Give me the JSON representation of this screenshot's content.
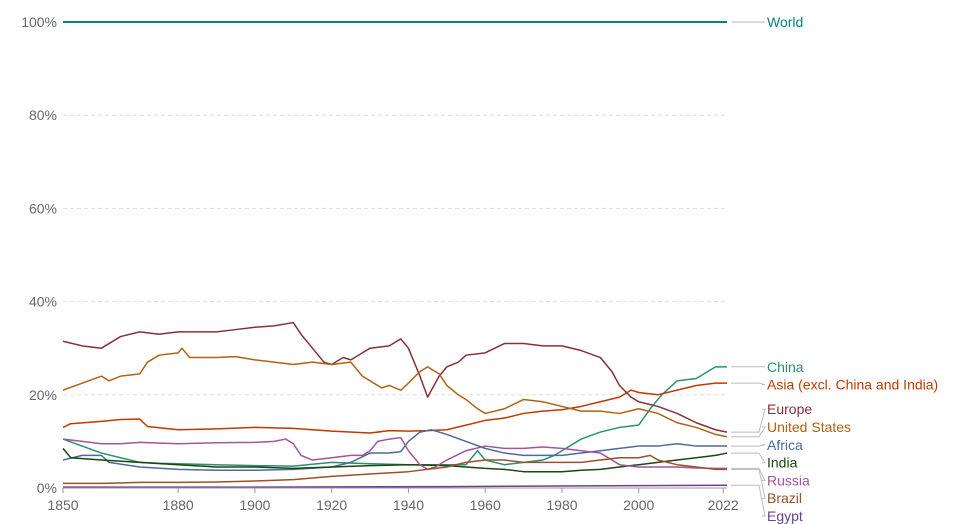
{
  "chart_data": {
    "type": "line",
    "title": "",
    "xlabel": "",
    "ylabel": "",
    "xlim": [
      1850,
      2023
    ],
    "ylim": [
      0,
      100
    ],
    "y_ticks": [
      0,
      20,
      40,
      60,
      80,
      100
    ],
    "y_tick_labels": [
      "0%",
      "20%",
      "40%",
      "60%",
      "80%",
      "100%"
    ],
    "x_ticks": [
      1850,
      1880,
      1900,
      1920,
      1940,
      1960,
      1980,
      2000,
      2022
    ],
    "x_tick_labels": [
      "1850",
      "1880",
      "1900",
      "1920",
      "1940",
      "1960",
      "1980",
      "2000",
      "2022"
    ],
    "grid": "horizontal dashed",
    "legend_position": "right, labels at line ends",
    "series": [
      {
        "name": "World",
        "color": "#00847e",
        "points": [
          [
            1850,
            100
          ],
          [
            2023,
            100
          ]
        ]
      },
      {
        "name": "China",
        "color": "#2a9170",
        "points": [
          [
            1850,
            10.5
          ],
          [
            1855,
            9
          ],
          [
            1860,
            7.5
          ],
          [
            1865,
            6.5
          ],
          [
            1870,
            5.5
          ],
          [
            1875,
            5.3
          ],
          [
            1880,
            5.2
          ],
          [
            1890,
            5
          ],
          [
            1900,
            4.8
          ],
          [
            1910,
            4.7
          ],
          [
            1920,
            5.5
          ],
          [
            1930,
            5.2
          ],
          [
            1940,
            5
          ],
          [
            1950,
            5
          ],
          [
            1955,
            5
          ],
          [
            1958,
            8
          ],
          [
            1960,
            6
          ],
          [
            1965,
            5
          ],
          [
            1970,
            5.5
          ],
          [
            1975,
            6
          ],
          [
            1978,
            7
          ],
          [
            1980,
            8
          ],
          [
            1985,
            10.5
          ],
          [
            1990,
            12
          ],
          [
            1995,
            13
          ],
          [
            2000,
            13.5
          ],
          [
            2003,
            17
          ],
          [
            2006,
            20
          ],
          [
            2010,
            23
          ],
          [
            2015,
            23.5
          ],
          [
            2018,
            25
          ],
          [
            2020,
            26
          ],
          [
            2023,
            26
          ]
        ]
      },
      {
        "name": "Asia (excl. China and India)",
        "color": "#be3b00",
        "points": [
          [
            1850,
            13
          ],
          [
            1852,
            13.8
          ],
          [
            1860,
            14.3
          ],
          [
            1865,
            14.7
          ],
          [
            1870,
            14.8
          ],
          [
            1872,
            13.2
          ],
          [
            1880,
            12.5
          ],
          [
            1890,
            12.7
          ],
          [
            1900,
            13
          ],
          [
            1910,
            12.8
          ],
          [
            1920,
            12.2
          ],
          [
            1930,
            11.8
          ],
          [
            1935,
            12.3
          ],
          [
            1940,
            12.2
          ],
          [
            1945,
            12.3
          ],
          [
            1950,
            12.5
          ],
          [
            1955,
            13.5
          ],
          [
            1960,
            14.5
          ],
          [
            1965,
            15
          ],
          [
            1970,
            16
          ],
          [
            1975,
            16.5
          ],
          [
            1980,
            16.8
          ],
          [
            1985,
            17.5
          ],
          [
            1990,
            18.5
          ],
          [
            1995,
            19.5
          ],
          [
            1998,
            21
          ],
          [
            2000,
            20.5
          ],
          [
            2005,
            20
          ],
          [
            2010,
            21
          ],
          [
            2015,
            22
          ],
          [
            2020,
            22.5
          ],
          [
            2023,
            22.5
          ]
        ]
      },
      {
        "name": "Europe",
        "color": "#883039",
        "points": [
          [
            1850,
            31.5
          ],
          [
            1855,
            30.5
          ],
          [
            1860,
            30
          ],
          [
            1865,
            32.5
          ],
          [
            1870,
            33.5
          ],
          [
            1875,
            33
          ],
          [
            1880,
            33.5
          ],
          [
            1890,
            33.5
          ],
          [
            1895,
            34
          ],
          [
            1900,
            34.5
          ],
          [
            1905,
            34.8
          ],
          [
            1910,
            35.5
          ],
          [
            1912,
            33
          ],
          [
            1915,
            30
          ],
          [
            1918,
            27
          ],
          [
            1920,
            26.5
          ],
          [
            1923,
            28
          ],
          [
            1925,
            27.5
          ],
          [
            1928,
            29
          ],
          [
            1930,
            30
          ],
          [
            1935,
            30.5
          ],
          [
            1938,
            32
          ],
          [
            1940,
            30
          ],
          [
            1943,
            24
          ],
          [
            1945,
            19.5
          ],
          [
            1948,
            24
          ],
          [
            1950,
            26
          ],
          [
            1953,
            27
          ],
          [
            1955,
            28.5
          ],
          [
            1960,
            29
          ],
          [
            1965,
            31
          ],
          [
            1970,
            31
          ],
          [
            1975,
            30.5
          ],
          [
            1980,
            30.5
          ],
          [
            1985,
            29.5
          ],
          [
            1990,
            28
          ],
          [
            1993,
            25
          ],
          [
            1995,
            22
          ],
          [
            1998,
            19.5
          ],
          [
            2000,
            18.5
          ],
          [
            2005,
            17.5
          ],
          [
            2010,
            16
          ],
          [
            2015,
            14
          ],
          [
            2020,
            12.5
          ],
          [
            2023,
            12
          ]
        ]
      },
      {
        "name": "United States",
        "color": "#b16214",
        "points": [
          [
            1850,
            21
          ],
          [
            1855,
            22.5
          ],
          [
            1860,
            24
          ],
          [
            1862,
            23
          ],
          [
            1865,
            24
          ],
          [
            1870,
            24.5
          ],
          [
            1872,
            27
          ],
          [
            1875,
            28.5
          ],
          [
            1880,
            29
          ],
          [
            1881,
            30
          ],
          [
            1883,
            28
          ],
          [
            1890,
            28
          ],
          [
            1895,
            28.2
          ],
          [
            1900,
            27.5
          ],
          [
            1905,
            27
          ],
          [
            1910,
            26.5
          ],
          [
            1915,
            27
          ],
          [
            1920,
            26.5
          ],
          [
            1925,
            27
          ],
          [
            1928,
            24
          ],
          [
            1930,
            23
          ],
          [
            1933,
            21.5
          ],
          [
            1935,
            22
          ],
          [
            1938,
            21
          ],
          [
            1940,
            22.5
          ],
          [
            1943,
            25
          ],
          [
            1945,
            26
          ],
          [
            1948,
            24.5
          ],
          [
            1950,
            22
          ],
          [
            1953,
            20
          ],
          [
            1955,
            19
          ],
          [
            1958,
            17
          ],
          [
            1960,
            16
          ],
          [
            1965,
            17
          ],
          [
            1970,
            19
          ],
          [
            1975,
            18.5
          ],
          [
            1980,
            17.5
          ],
          [
            1985,
            16.5
          ],
          [
            1990,
            16.5
          ],
          [
            1995,
            16
          ],
          [
            2000,
            17
          ],
          [
            2005,
            16
          ],
          [
            2010,
            14
          ],
          [
            2015,
            13
          ],
          [
            2020,
            11.5
          ],
          [
            2023,
            11
          ]
        ]
      },
      {
        "name": "Africa",
        "color": "#4c6a9c",
        "points": [
          [
            1850,
            6
          ],
          [
            1855,
            7
          ],
          [
            1860,
            7
          ],
          [
            1862,
            5.5
          ],
          [
            1870,
            4.5
          ],
          [
            1880,
            4
          ],
          [
            1890,
            3.8
          ],
          [
            1900,
            3.8
          ],
          [
            1910,
            4
          ],
          [
            1920,
            4.5
          ],
          [
            1925,
            5.5
          ],
          [
            1930,
            7.5
          ],
          [
            1935,
            7.5
          ],
          [
            1938,
            7.8
          ],
          [
            1940,
            10
          ],
          [
            1943,
            12
          ],
          [
            1946,
            12.5
          ],
          [
            1950,
            11.5
          ],
          [
            1955,
            10
          ],
          [
            1960,
            8.5
          ],
          [
            1965,
            7.5
          ],
          [
            1970,
            7
          ],
          [
            1975,
            7
          ],
          [
            1980,
            7
          ],
          [
            1985,
            7.5
          ],
          [
            1990,
            8
          ],
          [
            1995,
            8.5
          ],
          [
            2000,
            9
          ],
          [
            2005,
            9
          ],
          [
            2010,
            9.5
          ],
          [
            2015,
            9
          ],
          [
            2020,
            9
          ],
          [
            2023,
            9
          ]
        ]
      },
      {
        "name": "India",
        "color": "#18470f",
        "points": [
          [
            1850,
            8.5
          ],
          [
            1852,
            6.5
          ],
          [
            1860,
            6
          ],
          [
            1870,
            5.5
          ],
          [
            1880,
            5
          ],
          [
            1890,
            4.5
          ],
          [
            1900,
            4.5
          ],
          [
            1910,
            4.2
          ],
          [
            1920,
            4.5
          ],
          [
            1930,
            4.8
          ],
          [
            1940,
            5
          ],
          [
            1950,
            4.8
          ],
          [
            1960,
            4.2
          ],
          [
            1965,
            4
          ],
          [
            1970,
            3.5
          ],
          [
            1975,
            3.5
          ],
          [
            1980,
            3.5
          ],
          [
            1985,
            3.8
          ],
          [
            1990,
            4
          ],
          [
            1995,
            4.5
          ],
          [
            2000,
            5
          ],
          [
            2005,
            5.5
          ],
          [
            2010,
            6
          ],
          [
            2015,
            6.5
          ],
          [
            2020,
            7
          ],
          [
            2023,
            7.5
          ]
        ]
      },
      {
        "name": "Russia",
        "color": "#a2559c",
        "points": [
          [
            1850,
            10.5
          ],
          [
            1855,
            10
          ],
          [
            1860,
            9.5
          ],
          [
            1865,
            9.5
          ],
          [
            1870,
            9.8
          ],
          [
            1880,
            9.5
          ],
          [
            1890,
            9.7
          ],
          [
            1900,
            9.8
          ],
          [
            1905,
            10
          ],
          [
            1908,
            10.5
          ],
          [
            1910,
            9.5
          ],
          [
            1912,
            7
          ],
          [
            1915,
            6
          ],
          [
            1920,
            6.5
          ],
          [
            1925,
            7
          ],
          [
            1928,
            7
          ],
          [
            1930,
            8
          ],
          [
            1932,
            10
          ],
          [
            1935,
            10.5
          ],
          [
            1938,
            10.8
          ],
          [
            1940,
            8
          ],
          [
            1943,
            5
          ],
          [
            1945,
            4
          ],
          [
            1947,
            4.5
          ],
          [
            1950,
            6
          ],
          [
            1955,
            8
          ],
          [
            1960,
            9
          ],
          [
            1965,
            8.5
          ],
          [
            1970,
            8.5
          ],
          [
            1975,
            8.8
          ],
          [
            1980,
            8.5
          ],
          [
            1985,
            8
          ],
          [
            1990,
            7.5
          ],
          [
            1993,
            6
          ],
          [
            1995,
            5
          ],
          [
            2000,
            4.5
          ],
          [
            2005,
            4.5
          ],
          [
            2010,
            4.5
          ],
          [
            2015,
            4.3
          ],
          [
            2020,
            4.2
          ],
          [
            2023,
            4.2
          ]
        ]
      },
      {
        "name": "Brazil",
        "color": "#9a5129",
        "points": [
          [
            1850,
            1
          ],
          [
            1860,
            1
          ],
          [
            1870,
            1.2
          ],
          [
            1880,
            1.2
          ],
          [
            1890,
            1.3
          ],
          [
            1900,
            1.5
          ],
          [
            1910,
            1.8
          ],
          [
            1920,
            2.5
          ],
          [
            1930,
            3
          ],
          [
            1940,
            3.5
          ],
          [
            1950,
            4.5
          ],
          [
            1955,
            5.5
          ],
          [
            1960,
            6
          ],
          [
            1965,
            6
          ],
          [
            1970,
            5.5
          ],
          [
            1975,
            5.5
          ],
          [
            1980,
            5.5
          ],
          [
            1985,
            5.5
          ],
          [
            1990,
            6
          ],
          [
            1995,
            6.5
          ],
          [
            2000,
            6.5
          ],
          [
            2003,
            7
          ],
          [
            2005,
            6
          ],
          [
            2010,
            5
          ],
          [
            2015,
            4.5
          ],
          [
            2020,
            4
          ],
          [
            2023,
            4
          ]
        ]
      },
      {
        "name": "Egypt",
        "color": "#6d3e91",
        "points": [
          [
            1850,
            0.2
          ],
          [
            1900,
            0.2
          ],
          [
            1950,
            0.3
          ],
          [
            2000,
            0.5
          ],
          [
            2023,
            0.6
          ]
        ]
      }
    ]
  }
}
